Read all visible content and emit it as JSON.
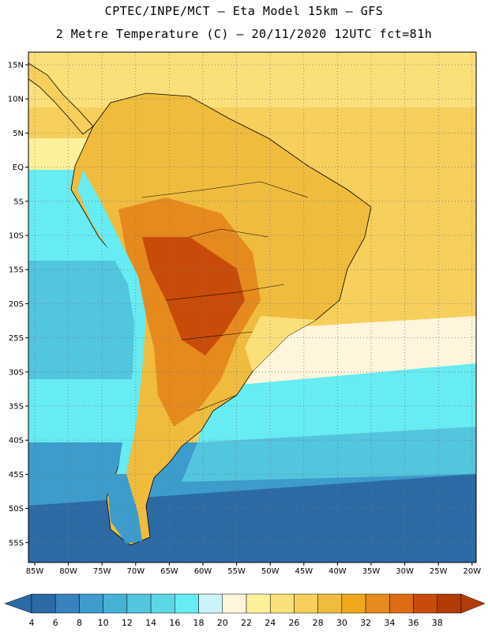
{
  "header": {
    "title_line1": "CPTEC/INPE/MCT –  Eta Model 15km – GFS",
    "title_line2": "2 Metre Temperature (C) – 20/11/2020 12UTC fct=81h"
  },
  "map": {
    "lat_labels": [
      "15N",
      "10N",
      "5N",
      "EQ",
      "5S",
      "10S",
      "15S",
      "20S",
      "25S",
      "30S",
      "35S",
      "40S",
      "45S",
      "50S",
      "55S"
    ],
    "lon_labels": [
      "85W",
      "80W",
      "75W",
      "70W",
      "65W",
      "60W",
      "55W",
      "50W",
      "45W",
      "40W",
      "35W",
      "30W",
      "25W",
      "20W"
    ],
    "grid": "dotted"
  },
  "legend": {
    "labels": [
      "4",
      "6",
      "8",
      "10",
      "12",
      "14",
      "16",
      "18",
      "20",
      "22",
      "24",
      "26",
      "28",
      "30",
      "32",
      "34",
      "36",
      "38"
    ],
    "colors": [
      "#2c6aa6",
      "#3683bd",
      "#3d9ccc",
      "#45b2d6",
      "#52c5df",
      "#5cd7e6",
      "#66ecf2",
      "#cdf3fa",
      "#fdf5dc",
      "#fdf09a",
      "#fbe07a",
      "#f6cf5c",
      "#efbc3e",
      "#f0a81a",
      "#e68a1e",
      "#dc6c12",
      "#c84b0a",
      "#b23c08"
    ],
    "low_arrow_color": "#2c6aa6",
    "high_arrow_color": "#b23c08"
  }
}
